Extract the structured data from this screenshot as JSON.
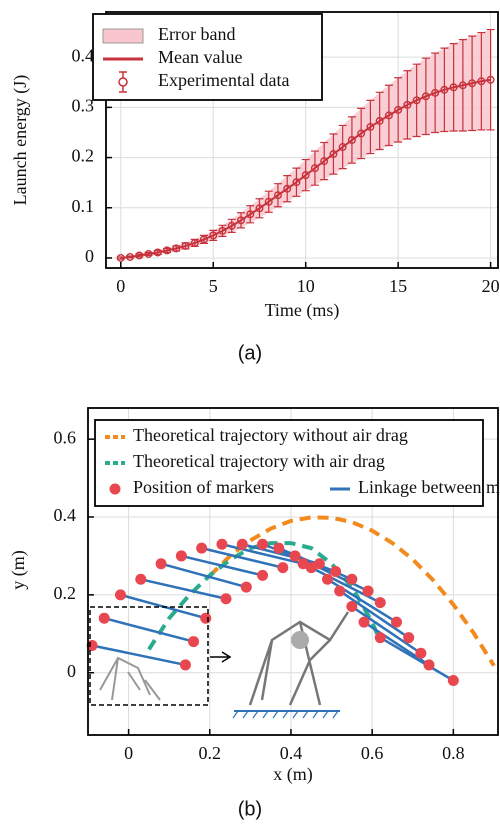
{
  "chart_data": [
    {
      "type": "line",
      "caption": "(a)",
      "x_label": "Time (ms)",
      "y_label": "Launch energy (J)",
      "xlim": [
        -0.8,
        20.4
      ],
      "ylim": [
        -0.02,
        0.49
      ],
      "xticks": [
        0,
        5,
        10,
        15,
        20
      ],
      "yticks": [
        0,
        0.1,
        0.2,
        0.3,
        0.4
      ],
      "grid": true,
      "legend": "upper left",
      "x": [
        0,
        0.5,
        1,
        1.5,
        2,
        2.5,
        3,
        3.5,
        4,
        4.5,
        5,
        5.5,
        6,
        6.5,
        7,
        7.5,
        8,
        8.5,
        9,
        9.5,
        10,
        10.5,
        11,
        11.5,
        12,
        12.5,
        13,
        13.5,
        14,
        14.5,
        15,
        15.5,
        16,
        16.5,
        17,
        17.5,
        18,
        18.5,
        19,
        19.5,
        20
      ],
      "series": [
        {
          "name": "Error band",
          "style": "band",
          "color": "#f8c6cc",
          "values": [
            0,
            0.002,
            0.005,
            0.008,
            0.011,
            0.015,
            0.019,
            0.024,
            0.03,
            0.037,
            0.045,
            0.054,
            0.064,
            0.075,
            0.087,
            0.099,
            0.112,
            0.125,
            0.138,
            0.151,
            0.165,
            0.179,
            0.193,
            0.207,
            0.221,
            0.235,
            0.248,
            0.261,
            0.273,
            0.284,
            0.295,
            0.305,
            0.314,
            0.322,
            0.329,
            0.335,
            0.34,
            0.344,
            0.348,
            0.352,
            0.355
          ],
          "errors": [
            0.002,
            0.002,
            0.003,
            0.003,
            0.004,
            0.004,
            0.005,
            0.006,
            0.007,
            0.008,
            0.01,
            0.011,
            0.013,
            0.015,
            0.017,
            0.019,
            0.021,
            0.023,
            0.026,
            0.028,
            0.031,
            0.034,
            0.037,
            0.04,
            0.043,
            0.046,
            0.05,
            0.053,
            0.057,
            0.06,
            0.064,
            0.068,
            0.072,
            0.076,
            0.079,
            0.083,
            0.087,
            0.091,
            0.094,
            0.097,
            0.1
          ]
        },
        {
          "name": "Mean value",
          "style": "line",
          "color": "#c8323c",
          "values": [
            0,
            0.002,
            0.005,
            0.008,
            0.011,
            0.015,
            0.019,
            0.024,
            0.03,
            0.037,
            0.045,
            0.054,
            0.064,
            0.075,
            0.087,
            0.099,
            0.112,
            0.125,
            0.138,
            0.151,
            0.165,
            0.179,
            0.193,
            0.207,
            0.221,
            0.235,
            0.248,
            0.261,
            0.273,
            0.284,
            0.295,
            0.305,
            0.314,
            0.322,
            0.329,
            0.335,
            0.34,
            0.344,
            0.348,
            0.352,
            0.355
          ]
        },
        {
          "name": "Experimental data",
          "style": "errorbar",
          "color": "#c8323c",
          "values": [
            0,
            0.002,
            0.005,
            0.008,
            0.011,
            0.015,
            0.019,
            0.024,
            0.03,
            0.037,
            0.045,
            0.054,
            0.064,
            0.075,
            0.087,
            0.099,
            0.112,
            0.125,
            0.138,
            0.151,
            0.165,
            0.179,
            0.193,
            0.207,
            0.221,
            0.235,
            0.248,
            0.261,
            0.273,
            0.284,
            0.295,
            0.305,
            0.314,
            0.322,
            0.329,
            0.335,
            0.34,
            0.344,
            0.348,
            0.352,
            0.355
          ],
          "errors": [
            0.002,
            0.002,
            0.003,
            0.003,
            0.004,
            0.004,
            0.005,
            0.006,
            0.007,
            0.008,
            0.01,
            0.011,
            0.013,
            0.015,
            0.017,
            0.019,
            0.021,
            0.023,
            0.026,
            0.028,
            0.031,
            0.034,
            0.037,
            0.04,
            0.043,
            0.046,
            0.05,
            0.053,
            0.057,
            0.06,
            0.064,
            0.068,
            0.072,
            0.076,
            0.079,
            0.083,
            0.087,
            0.091,
            0.094,
            0.097,
            0.1
          ]
        }
      ]
    },
    {
      "type": "scatter",
      "caption": "(b)",
      "x_label": "x (m)",
      "y_label": "y (m)",
      "xlim": [
        -0.1,
        0.91
      ],
      "ylim": [
        -0.16,
        0.68
      ],
      "xticks": [
        0,
        0.2,
        0.4,
        0.6,
        0.8
      ],
      "yticks": [
        0,
        0.2,
        0.4,
        0.6
      ],
      "grid": true,
      "legend": "upper left",
      "series": [
        {
          "name": "Theoretical trajectory without air drag",
          "style": "dashed",
          "color": "#f28a1e",
          "x": [
            0.2,
            0.25,
            0.3,
            0.35,
            0.4,
            0.45,
            0.5,
            0.55,
            0.6,
            0.65,
            0.7,
            0.75,
            0.8,
            0.85,
            0.9
          ],
          "values": [
            0.249,
            0.3,
            0.34,
            0.37,
            0.39,
            0.399,
            0.398,
            0.387,
            0.365,
            0.333,
            0.291,
            0.238,
            0.175,
            0.102,
            0.018
          ]
        },
        {
          "name": "Theoretical trajectory with air drag",
          "style": "dashed",
          "color": "#2bab8e",
          "x": [
            0.05,
            0.1,
            0.15,
            0.2,
            0.25,
            0.3,
            0.35,
            0.4,
            0.45,
            0.5,
            0.55,
            0.6,
            0.62
          ],
          "values": [
            0.06,
            0.14,
            0.2,
            0.25,
            0.29,
            0.32,
            0.333,
            0.333,
            0.32,
            0.28,
            0.22,
            0.13,
            0.08
          ]
        },
        {
          "name": "Position of markers",
          "style": "marker",
          "color": "#e9474f",
          "x": [
            -0.09,
            0.14,
            -0.06,
            0.16,
            -0.02,
            0.19,
            0.03,
            0.24,
            0.08,
            0.29,
            0.13,
            0.33,
            0.18,
            0.38,
            0.23,
            0.43,
            0.28,
            0.47,
            0.33,
            0.51,
            0.37,
            0.55,
            0.41,
            0.59,
            0.45,
            0.62,
            0.49,
            0.66,
            0.52,
            0.69,
            0.55,
            0.72,
            0.58,
            0.74,
            0.62,
            0.8
          ],
          "values": [
            0.07,
            0.02,
            0.14,
            0.08,
            0.2,
            0.14,
            0.24,
            0.19,
            0.28,
            0.22,
            0.3,
            0.25,
            0.32,
            0.27,
            0.33,
            0.28,
            0.33,
            0.28,
            0.33,
            0.26,
            0.32,
            0.24,
            0.3,
            0.21,
            0.27,
            0.18,
            0.24,
            0.13,
            0.21,
            0.09,
            0.17,
            0.05,
            0.13,
            0.02,
            0.09,
            -0.02
          ]
        },
        {
          "name": "Linkage between markers",
          "style": "segment",
          "color": "#2f72b8"
        }
      ]
    }
  ]
}
